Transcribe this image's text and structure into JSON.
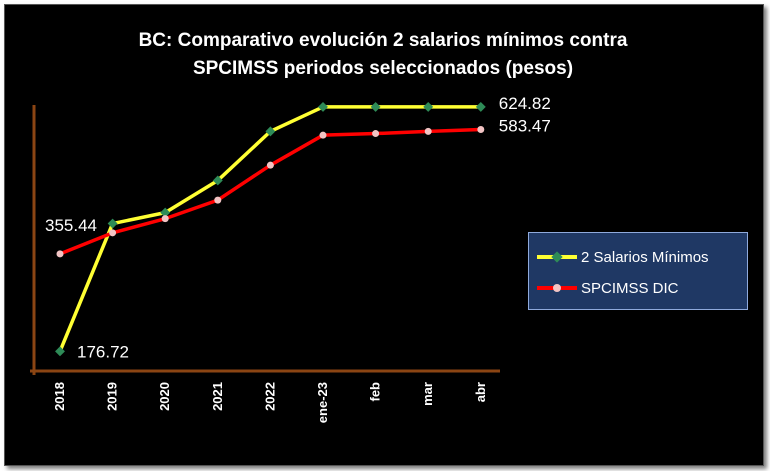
{
  "chart_data": {
    "type": "line",
    "title_lines": [
      "BC: Comparativo evolución 2 salarios mínimos contra",
      "SPCIMSS periodos seleccionados (pesos)"
    ],
    "categories": [
      "2018",
      "2019",
      "2020",
      "2021",
      "2022",
      "ene-23",
      "feb",
      "mar",
      "abr"
    ],
    "ylim": [
      170,
      632
    ],
    "grid": false,
    "legend_position": "right",
    "series": [
      {
        "name": "2 Salarios Mínimos",
        "color": "#ffff33",
        "marker_color": "#2e8b57",
        "values": [
          176.72,
          411.0,
          431.0,
          490.0,
          580.0,
          624.82,
          624.82,
          624.82,
          624.82
        ]
      },
      {
        "name": "SPCIMSS DIC",
        "color": "#ff0000",
        "marker_color": "#f2c4c4",
        "values": [
          355.44,
          394.0,
          420.0,
          454.0,
          518.0,
          573.0,
          576.0,
          580.0,
          583.47
        ]
      }
    ],
    "data_labels": [
      {
        "series": 0,
        "index": 0,
        "text": "176.72"
      },
      {
        "series": 1,
        "index": 0,
        "text": "355.44"
      },
      {
        "series": 0,
        "index": 8,
        "text": "624.82"
      },
      {
        "series": 1,
        "index": 8,
        "text": "583.47"
      }
    ],
    "axis_color": "#8b4513"
  }
}
